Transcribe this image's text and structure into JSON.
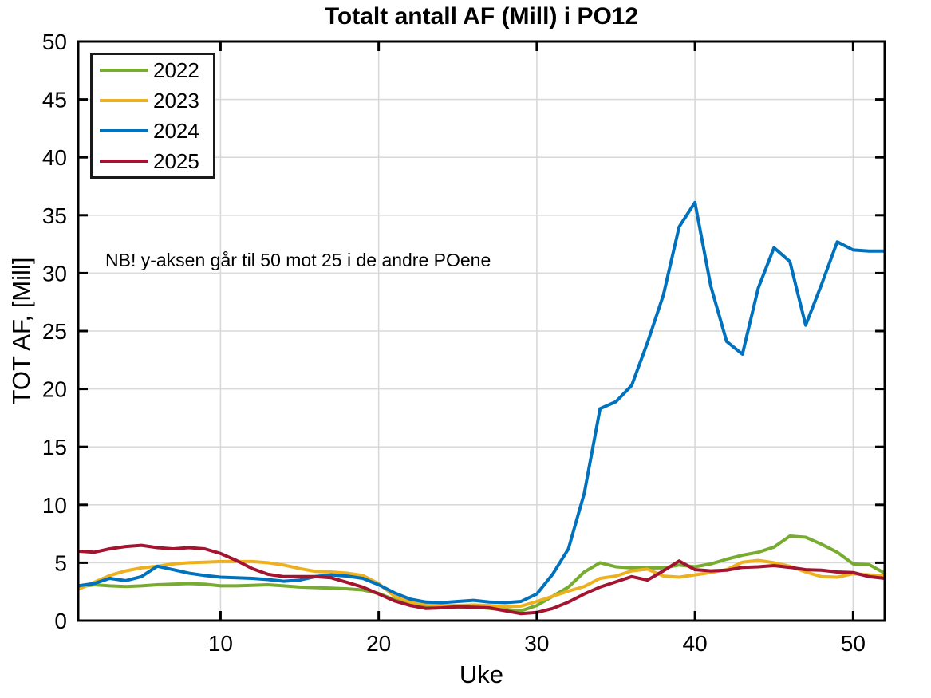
{
  "chart_data": {
    "type": "line",
    "title": "Totalt antall AF (Mill) i PO12",
    "xlabel": "Uke",
    "ylabel": "TOT AF, [Mill]",
    "xlim": [
      1,
      52
    ],
    "ylim": [
      0,
      50
    ],
    "xticks": [
      10,
      20,
      30,
      40,
      50
    ],
    "yticks": [
      0,
      5,
      10,
      15,
      20,
      25,
      30,
      35,
      40,
      45,
      50
    ],
    "grid": true,
    "grid_color": "#d9d9d9",
    "axis_color": "#000000",
    "legend_position": "top-left",
    "annotation": {
      "text": "NB! y-aksen går til 50 mot 25 i de andre POene",
      "x": 3,
      "y": 31
    },
    "x": [
      1,
      2,
      3,
      4,
      5,
      6,
      7,
      8,
      9,
      10,
      11,
      12,
      13,
      14,
      15,
      16,
      17,
      18,
      19,
      20,
      21,
      22,
      23,
      24,
      25,
      26,
      27,
      28,
      29,
      30,
      31,
      32,
      33,
      34,
      35,
      36,
      37,
      38,
      39,
      40,
      41,
      42,
      43,
      44,
      45,
      46,
      47,
      48,
      49,
      50,
      51,
      52
    ],
    "series": [
      {
        "name": "2022",
        "color": "#77AC30",
        "values": [
          2.9,
          3.1,
          3.0,
          2.95,
          3.0,
          3.1,
          3.15,
          3.2,
          3.15,
          3.0,
          3.0,
          3.05,
          3.1,
          3.0,
          2.9,
          2.85,
          2.8,
          2.75,
          2.65,
          2.35,
          1.8,
          1.45,
          1.2,
          1.1,
          1.15,
          1.2,
          1.05,
          0.95,
          0.85,
          1.3,
          2.1,
          2.9,
          4.2,
          5.0,
          4.65,
          4.55,
          4.55,
          4.55,
          4.8,
          4.65,
          4.9,
          5.3,
          5.65,
          5.9,
          6.35,
          7.3,
          7.2,
          6.6,
          5.9,
          4.9,
          4.85,
          4.1
        ]
      },
      {
        "name": "2023",
        "color": "#EDB120",
        "values": [
          2.7,
          3.3,
          3.9,
          4.3,
          4.55,
          4.7,
          4.9,
          5.0,
          5.05,
          5.1,
          5.1,
          5.1,
          5.0,
          4.8,
          4.5,
          4.25,
          4.2,
          4.1,
          3.9,
          3.2,
          2.1,
          1.6,
          1.4,
          1.3,
          1.3,
          1.35,
          1.3,
          1.2,
          1.25,
          1.65,
          2.1,
          2.55,
          2.95,
          3.65,
          3.85,
          4.3,
          4.45,
          3.85,
          3.75,
          3.95,
          4.15,
          4.4,
          5.05,
          5.2,
          5.0,
          4.7,
          4.2,
          3.8,
          3.75,
          4.05,
          3.95,
          3.9
        ]
      },
      {
        "name": "2024",
        "color": "#0072BD",
        "values": [
          3.0,
          3.2,
          3.65,
          3.45,
          3.8,
          4.7,
          4.4,
          4.1,
          3.9,
          3.75,
          3.7,
          3.65,
          3.55,
          3.4,
          3.5,
          3.8,
          3.95,
          3.85,
          3.65,
          3.1,
          2.4,
          1.85,
          1.6,
          1.55,
          1.65,
          1.75,
          1.6,
          1.55,
          1.65,
          2.3,
          4.0,
          6.2,
          11.0,
          18.3,
          18.9,
          20.3,
          24.0,
          28.1,
          34.0,
          36.1,
          28.9,
          24.1,
          23.0,
          28.7,
          32.2,
          31.0,
          25.5,
          29.0,
          32.7,
          32.0,
          31.9,
          31.9
        ]
      },
      {
        "name": "2025",
        "color": "#A2142F",
        "values": [
          6.0,
          5.9,
          6.2,
          6.4,
          6.5,
          6.3,
          6.2,
          6.3,
          6.2,
          5.8,
          5.2,
          4.5,
          4.0,
          3.8,
          3.8,
          3.8,
          3.7,
          3.3,
          2.9,
          2.3,
          1.7,
          1.3,
          1.05,
          1.1,
          1.2,
          1.15,
          1.1,
          0.85,
          0.6,
          0.7,
          1.05,
          1.6,
          2.3,
          2.9,
          3.35,
          3.8,
          3.5,
          4.3,
          5.15,
          4.4,
          4.3,
          4.35,
          4.6,
          4.65,
          4.75,
          4.6,
          4.4,
          4.35,
          4.2,
          4.15,
          3.8,
          3.65
        ]
      }
    ]
  }
}
